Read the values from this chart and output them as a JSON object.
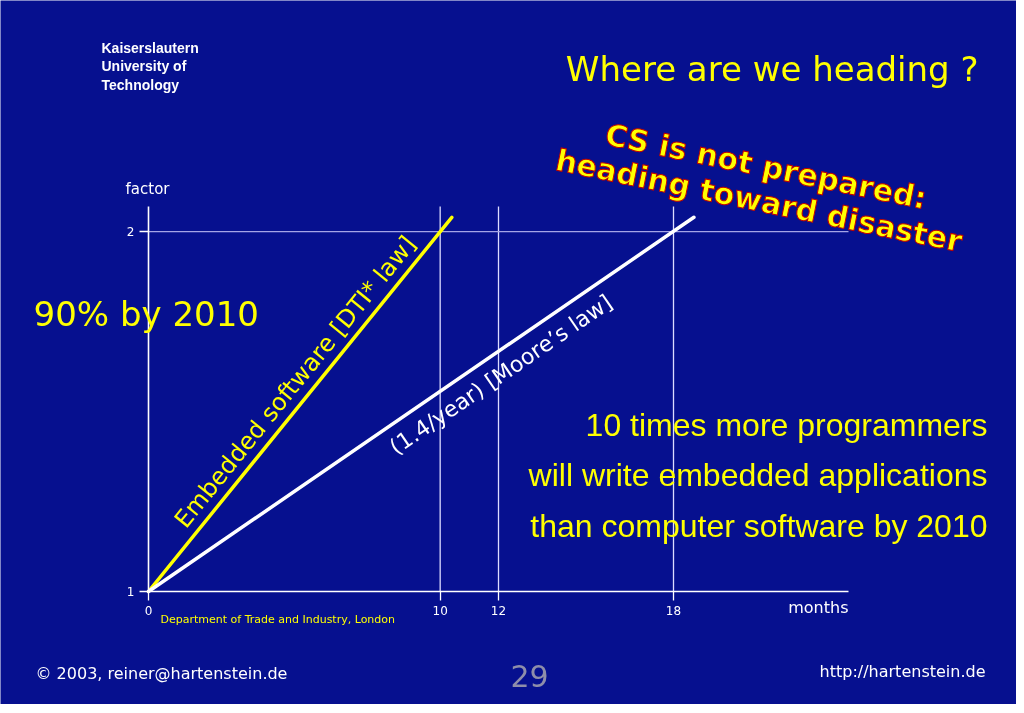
{
  "chart_data": {
    "type": "line",
    "title": "Where are we heading ?",
    "xlabel": "months",
    "ylabel": "factor",
    "xlim": [
      0,
      24
    ],
    "ylim": [
      1,
      2.07
    ],
    "xticks": [
      0,
      10,
      12,
      18
    ],
    "yticks": [
      1,
      2
    ],
    "series": [
      {
        "name": "Embedded software [DTI* law]",
        "color": "#ffff00",
        "x": [
          0,
          10.4
        ],
        "values": [
          1,
          2.04
        ]
      },
      {
        "name": "(1.4/year)  [Moore’s law]",
        "color": "#ffffff",
        "x": [
          0,
          18.7
        ],
        "values": [
          1,
          2.04
        ]
      }
    ],
    "ref_lines": [
      {
        "axis": "x",
        "value": 10,
        "color": "#dcdcff"
      },
      {
        "axis": "x",
        "value": 12,
        "color": "#dcdcff"
      },
      {
        "axis": "x",
        "value": 18,
        "color": "#dcdcff"
      },
      {
        "axis": "y",
        "value": 2,
        "color": "#a4a4e6"
      }
    ],
    "marker": "none",
    "line_style": "solid",
    "annotations": [
      "CS is not prepared:\nheading toward disaster",
      "90% by 2010",
      "10 times more programmers\nwill write embedded applications\nthan computer software by 2010",
      "Department of Trade and Industry, London",
      "Kaiserslautern\nUniversity of\nTechnology",
      "© 2003, reiner@hartenstein.de",
      "29",
      "http://hartenstein.de"
    ]
  }
}
